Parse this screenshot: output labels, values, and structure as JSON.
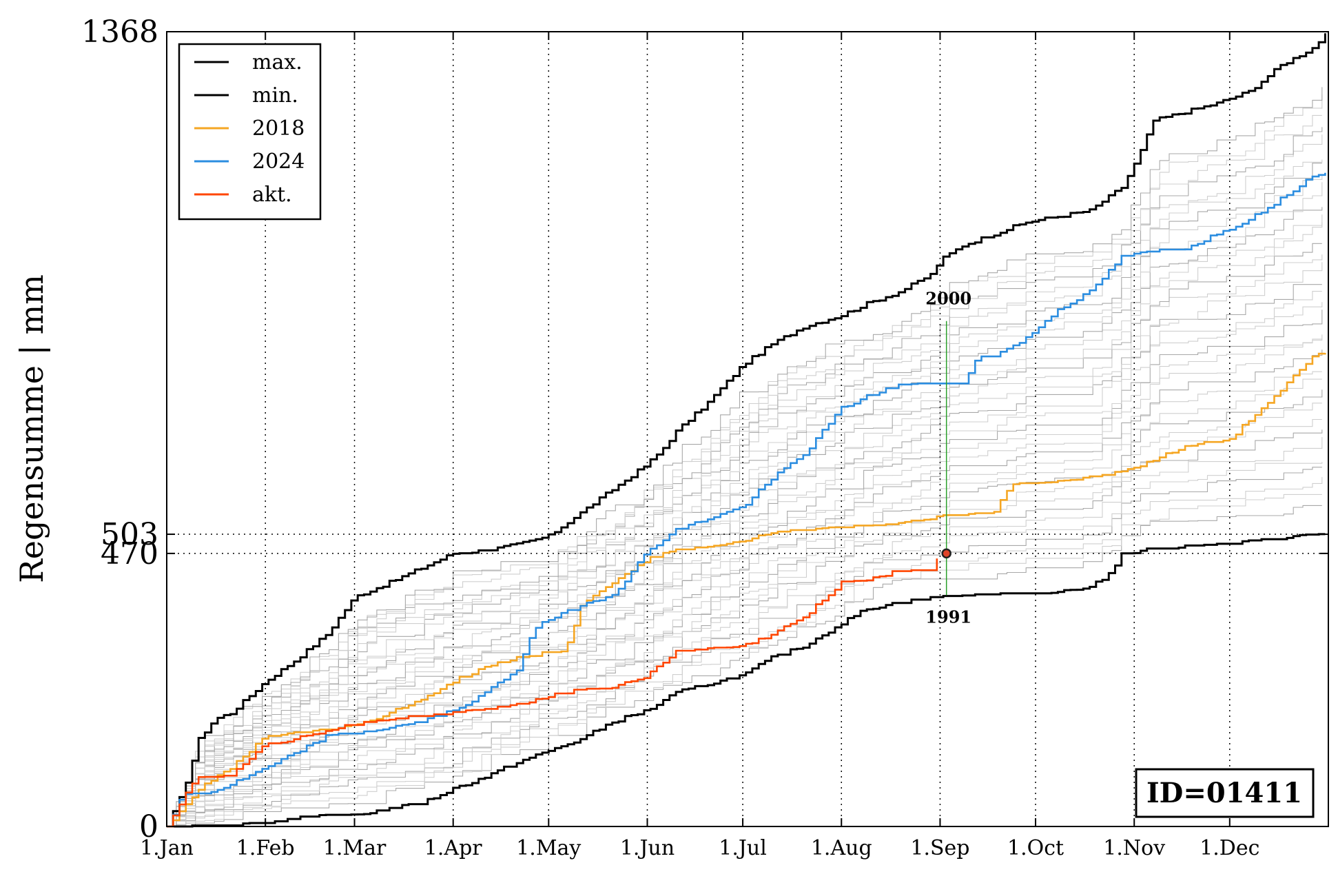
{
  "chart_data": {
    "type": "line",
    "ylabel": "Regensumme | mm",
    "ylim": [
      0,
      1368
    ],
    "xlim": [
      0,
      365
    ],
    "yticks": [
      {
        "value": 0,
        "label": "0"
      },
      {
        "value": 470,
        "label": "470"
      },
      {
        "value": 503,
        "label": "503"
      },
      {
        "value": 1368,
        "label": "1368"
      }
    ],
    "xticks": [
      {
        "day": 0,
        "label": "1.Jan"
      },
      {
        "day": 31,
        "label": "1.Feb"
      },
      {
        "day": 59,
        "label": "1.Mar"
      },
      {
        "day": 90,
        "label": "1.Apr"
      },
      {
        "day": 120,
        "label": "1.May"
      },
      {
        "day": 151,
        "label": "1.Jun"
      },
      {
        "day": 181,
        "label": "1.Jul"
      },
      {
        "day": 212,
        "label": "1.Aug"
      },
      {
        "day": 243,
        "label": "1.Sep"
      },
      {
        "day": 273,
        "label": "1.Oct"
      },
      {
        "day": 304,
        "label": "1.Nov"
      },
      {
        "day": 334,
        "label": "1.Dec"
      }
    ],
    "reference_lines": [
      470,
      503
    ],
    "grid": "dotted vertical lines at month starts",
    "legend_placement": "top-left",
    "series": [
      {
        "name": "max.",
        "color": "#000000",
        "x": [
          0,
          5,
          10,
          15,
          20,
          31,
          40,
          50,
          59,
          70,
          80,
          90,
          100,
          110,
          120,
          130,
          140,
          150,
          155,
          160,
          170,
          181,
          190,
          200,
          212,
          220,
          230,
          240,
          243,
          250,
          260,
          270,
          280,
          290,
          300,
          305,
          310,
          320,
          330,
          340,
          350,
          360,
          365
        ],
        "y": [
          0,
          60,
          150,
          185,
          195,
          250,
          285,
          330,
          395,
          420,
          445,
          470,
          475,
          485,
          500,
          540,
          580,
          620,
          645,
          680,
          730,
          795,
          830,
          860,
          880,
          900,
          920,
          950,
          975,
          1000,
          1020,
          1040,
          1050,
          1060,
          1100,
          1150,
          1215,
          1230,
          1245,
          1265,
          1310,
          1340,
          1368
        ]
      },
      {
        "name": "min.",
        "color": "#000000",
        "x": [
          0,
          10,
          20,
          31,
          40,
          59,
          70,
          80,
          90,
          100,
          110,
          120,
          130,
          140,
          151,
          160,
          170,
          181,
          190,
          200,
          212,
          220,
          230,
          243,
          260,
          273,
          290,
          297,
          300,
          310,
          320,
          334,
          340,
          350,
          360,
          365
        ],
        "y": [
          0,
          0,
          3,
          5,
          15,
          20,
          30,
          40,
          65,
          85,
          110,
          130,
          150,
          180,
          200,
          230,
          245,
          260,
          290,
          310,
          350,
          375,
          385,
          395,
          398,
          400,
          410,
          440,
          470,
          478,
          482,
          485,
          490,
          495,
          503,
          503
        ]
      },
      {
        "name": "2018",
        "color": "#f5a623",
        "x": [
          0,
          10,
          20,
          31,
          50,
          59,
          70,
          80,
          90,
          100,
          110,
          120,
          125,
          130,
          140,
          151,
          160,
          170,
          181,
          190,
          200,
          212,
          230,
          243,
          250,
          260,
          265,
          270,
          280,
          290,
          300,
          310,
          320,
          334,
          340,
          350,
          360,
          365
        ],
        "y": [
          0,
          65,
          100,
          155,
          165,
          175,
          195,
          220,
          250,
          275,
          290,
          300,
          300,
          380,
          420,
          460,
          475,
          480,
          490,
          505,
          510,
          515,
          520,
          535,
          535,
          540,
          590,
          590,
          595,
          600,
          610,
          630,
          655,
          665,
          700,
          750,
          810,
          815
        ]
      },
      {
        "name": "2024",
        "color": "#2b8de0",
        "x": [
          0,
          5,
          15,
          25,
          31,
          40,
          50,
          59,
          70,
          80,
          90,
          100,
          110,
          115,
          120,
          130,
          140,
          145,
          151,
          160,
          170,
          181,
          190,
          200,
          212,
          220,
          230,
          240,
          243,
          250,
          255,
          260,
          270,
          280,
          290,
          300,
          310,
          320,
          330,
          340,
          350,
          360,
          365
        ],
        "y": [
          0,
          55,
          60,
          85,
          100,
          125,
          155,
          160,
          170,
          180,
          200,
          230,
          270,
          340,
          355,
          380,
          400,
          430,
          475,
          510,
          530,
          550,
          600,
          640,
          720,
          740,
          760,
          760,
          760,
          760,
          810,
          810,
          840,
          890,
          920,
          980,
          990,
          995,
          1020,
          1045,
          1080,
          1120,
          1130
        ]
      },
      {
        "name": "akt.",
        "color": "#ff4500",
        "x": [
          0,
          5,
          10,
          15,
          20,
          25,
          31,
          40,
          50,
          59,
          70,
          80,
          90,
          100,
          110,
          120,
          130,
          140,
          151,
          160,
          170,
          181,
          190,
          200,
          205,
          212,
          220,
          230,
          240,
          243
        ],
        "y": [
          0,
          50,
          85,
          85,
          85,
          115,
          140,
          150,
          165,
          175,
          185,
          190,
          195,
          200,
          210,
          225,
          235,
          240,
          260,
          300,
          305,
          310,
          330,
          360,
          385,
          420,
          425,
          440,
          440,
          470
        ]
      }
    ],
    "current_marker": {
      "day": 245,
      "value": 470
    },
    "extreme_markers": [
      {
        "label": "2000",
        "day": 245,
        "value": 870
      },
      {
        "label": "1991",
        "day": 245,
        "value": 398
      }
    ],
    "id_box": "ID=01411"
  }
}
